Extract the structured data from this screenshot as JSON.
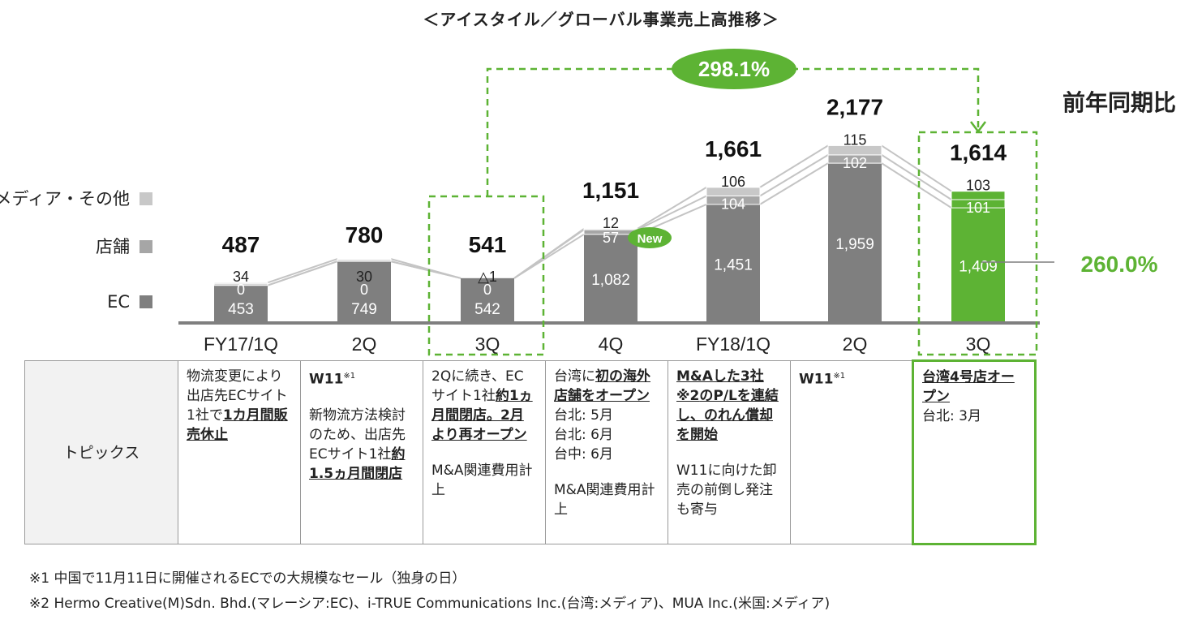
{
  "title": "＜アイスタイル／グローバル事業売上高推移＞",
  "chart_data": {
    "type": "bar",
    "stacked": true,
    "categories": [
      "FY17/1Q",
      "2Q",
      "3Q",
      "4Q",
      "FY18/1Q",
      "2Q",
      "3Q"
    ],
    "series": [
      {
        "name": "EC",
        "values": [
          453,
          749,
          542,
          1082,
          1451,
          1959,
          1409
        ],
        "labels": [
          "453",
          "749",
          "542",
          "1,082",
          "1,451",
          "1,959",
          "1,409"
        ]
      },
      {
        "name": "店舗",
        "values": [
          0,
          0,
          0,
          57,
          104,
          102,
          101
        ],
        "labels": [
          "0",
          "0",
          "0",
          "57",
          "104",
          "102",
          "101"
        ]
      },
      {
        "name": "メディア・その他",
        "values": [
          34,
          30,
          -1,
          12,
          106,
          115,
          103
        ],
        "labels": [
          "34",
          "30",
          "△1",
          "12",
          "106",
          "115",
          "103"
        ]
      }
    ],
    "totals": [
      487,
      780,
      541,
      1151,
      1661,
      2177,
      1614
    ],
    "total_labels": [
      "487",
      "780",
      "541",
      "1,151",
      "1,661",
      "2,177",
      "1,614"
    ],
    "highlight_index": 6,
    "colors": {
      "bar": "#7f7f7f",
      "store": "#a6a6a6",
      "media": "#c8c8c8",
      "highlight": "#5db334",
      "line": "#c4c4c4"
    },
    "annotations": {
      "growth_label": "298.1%",
      "yoy_label": "前年同期比",
      "ec_growth_label": "260.0%",
      "new_badge": "New",
      "new_badge_index": 3
    }
  },
  "legend": [
    {
      "label": "メディア・その他",
      "color": "#c8c8c8"
    },
    {
      "label": "店舗",
      "color": "#a6a6a6"
    },
    {
      "label": "EC",
      "color": "#7f7f7f"
    }
  ],
  "topics": {
    "row_header": "トピックス",
    "cells": [
      [
        {
          "t": "物流変更により出店先ECサイト1社で"
        },
        {
          "t": "1カ月間販売休止",
          "s": "bu"
        }
      ],
      [
        {
          "t": "W11",
          "s": "b"
        },
        {
          "t": "※1",
          "s": "sup"
        },
        {
          "br": true
        },
        {
          "gap": true
        },
        {
          "t": "新物流方法検討のため、出店先ECサイト1社"
        },
        {
          "t": "約1.5ヵ月間閉店",
          "s": "bu"
        }
      ],
      [
        {
          "t": "2Qに続き、ECサイト1社"
        },
        {
          "t": "約1ヵ月間閉店。2月より再オープン",
          "s": "bu"
        },
        {
          "br": true
        },
        {
          "gap": true
        },
        {
          "t": "M&A関連費用計上"
        }
      ],
      [
        {
          "t": "台湾に"
        },
        {
          "t": "初の海外店舗をオープン",
          "s": "bu"
        },
        {
          "br": true
        },
        {
          "t": "台北:  5月"
        },
        {
          "br": true
        },
        {
          "t": "台北:  6月"
        },
        {
          "br": true
        },
        {
          "t": "台中:  6月"
        },
        {
          "br": true
        },
        {
          "gap": true
        },
        {
          "t": "M&A関連費用計上"
        }
      ],
      [
        {
          "t": "M&Aした3社",
          "s": "bu"
        },
        {
          "t": "※2",
          "s": "bu"
        },
        {
          "t": "のP/Lを連結し、のれん償却を開始",
          "s": "bu"
        },
        {
          "br": true
        },
        {
          "gap": true
        },
        {
          "t": "W11に向けた卸売の前倒し発注も寄与"
        }
      ],
      [
        {
          "t": "W11",
          "s": "b"
        },
        {
          "t": "※1",
          "s": "sup"
        }
      ],
      [
        {
          "t": "台湾4号店オープン",
          "s": "bu"
        },
        {
          "br": true
        },
        {
          "t": "台北:  3月"
        }
      ]
    ]
  },
  "notes": [
    "※1   中国で11月11日に開催されるECでの大規模なセール（独身の日）",
    "※2   Hermo Creative(M)Sdn. Bhd.(マレーシア:EC)、i-TRUE Communications Inc.(台湾:メディア)、MUA Inc.(米国:メディア)"
  ]
}
